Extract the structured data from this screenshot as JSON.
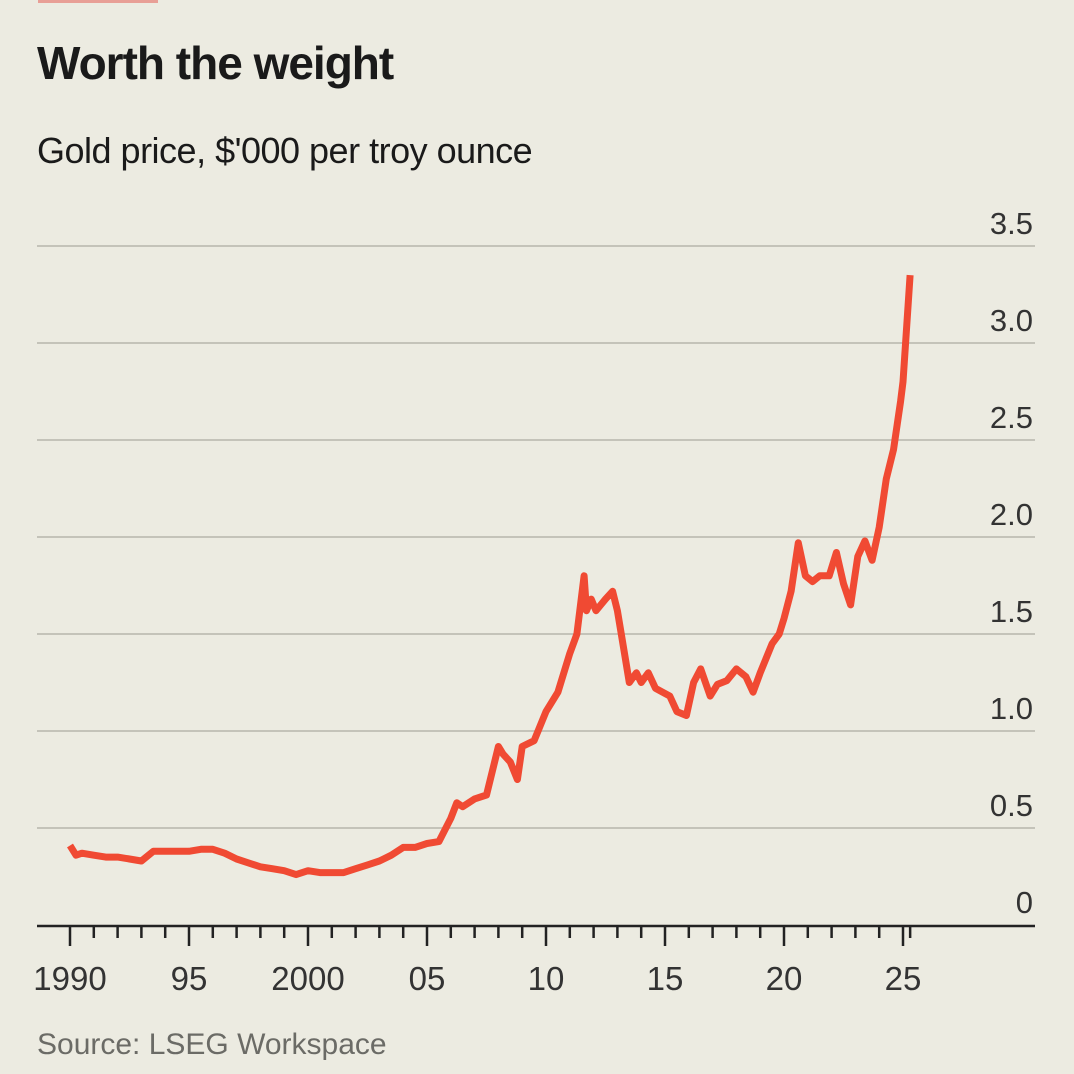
{
  "chart_data": {
    "type": "line",
    "title": "Worth the weight",
    "subtitle": "Gold price, $'000 per troy ounce",
    "source": "Source: LSEG Workspace",
    "xlabel": "",
    "ylabel": "",
    "ylim": [
      0,
      3.5
    ],
    "xlim": [
      1990,
      2025.3
    ],
    "grid": true,
    "y_ticks": [
      0,
      0.5,
      1.0,
      1.5,
      2.0,
      2.5,
      3.0,
      3.5
    ],
    "y_tick_labels": [
      "0",
      "0.5",
      "1.0",
      "1.5",
      "2.0",
      "2.5",
      "3.0",
      "3.5"
    ],
    "x_ticks_major": [
      1990,
      1995,
      2000,
      2005,
      2010,
      2015,
      2020,
      2025
    ],
    "x_tick_labels": [
      "1990",
      "95",
      "2000",
      "05",
      "10",
      "15",
      "20",
      "25"
    ],
    "line_color": "#f04a33",
    "series": [
      {
        "name": "Gold price",
        "x": [
          1990.0,
          1990.25,
          1990.5,
          1991.0,
          1991.5,
          1992.0,
          1992.5,
          1993.0,
          1993.5,
          1994.0,
          1994.5,
          1995.0,
          1995.5,
          1996.0,
          1996.5,
          1997.0,
          1997.5,
          1998.0,
          1998.5,
          1999.0,
          1999.5,
          2000.0,
          2000.5,
          2001.0,
          2001.5,
          2002.0,
          2002.5,
          2003.0,
          2003.5,
          2004.0,
          2004.5,
          2005.0,
          2005.5,
          2006.0,
          2006.25,
          2006.5,
          2007.0,
          2007.5,
          2008.0,
          2008.2,
          2008.5,
          2008.8,
          2009.0,
          2009.5,
          2010.0,
          2010.5,
          2011.0,
          2011.3,
          2011.6,
          2011.7,
          2011.9,
          2012.1,
          2012.3,
          2012.5,
          2012.8,
          2013.0,
          2013.3,
          2013.5,
          2013.8,
          2014.0,
          2014.3,
          2014.6,
          2014.9,
          2015.2,
          2015.5,
          2015.9,
          2016.2,
          2016.5,
          2016.9,
          2017.2,
          2017.6,
          2018.0,
          2018.4,
          2018.7,
          2019.0,
          2019.5,
          2019.8,
          2020.0,
          2020.3,
          2020.6,
          2020.9,
          2021.2,
          2021.5,
          2021.9,
          2022.2,
          2022.5,
          2022.8,
          2023.1,
          2023.4,
          2023.7,
          2024.0,
          2024.3,
          2024.6,
          2024.9,
          2025.0,
          2025.3
        ],
        "y": [
          0.41,
          0.36,
          0.37,
          0.36,
          0.35,
          0.35,
          0.34,
          0.33,
          0.38,
          0.38,
          0.38,
          0.38,
          0.39,
          0.39,
          0.37,
          0.34,
          0.32,
          0.3,
          0.29,
          0.28,
          0.26,
          0.28,
          0.27,
          0.27,
          0.27,
          0.29,
          0.31,
          0.33,
          0.36,
          0.4,
          0.4,
          0.42,
          0.43,
          0.55,
          0.63,
          0.61,
          0.65,
          0.67,
          0.92,
          0.88,
          0.84,
          0.75,
          0.92,
          0.95,
          1.1,
          1.2,
          1.4,
          1.5,
          1.8,
          1.62,
          1.68,
          1.62,
          1.65,
          1.68,
          1.72,
          1.62,
          1.4,
          1.25,
          1.3,
          1.25,
          1.3,
          1.22,
          1.2,
          1.18,
          1.1,
          1.08,
          1.25,
          1.32,
          1.18,
          1.24,
          1.26,
          1.32,
          1.28,
          1.2,
          1.3,
          1.45,
          1.5,
          1.58,
          1.72,
          1.97,
          1.8,
          1.77,
          1.8,
          1.8,
          1.92,
          1.76,
          1.65,
          1.9,
          1.98,
          1.88,
          2.05,
          2.3,
          2.45,
          2.7,
          2.8,
          3.35
        ]
      }
    ]
  }
}
